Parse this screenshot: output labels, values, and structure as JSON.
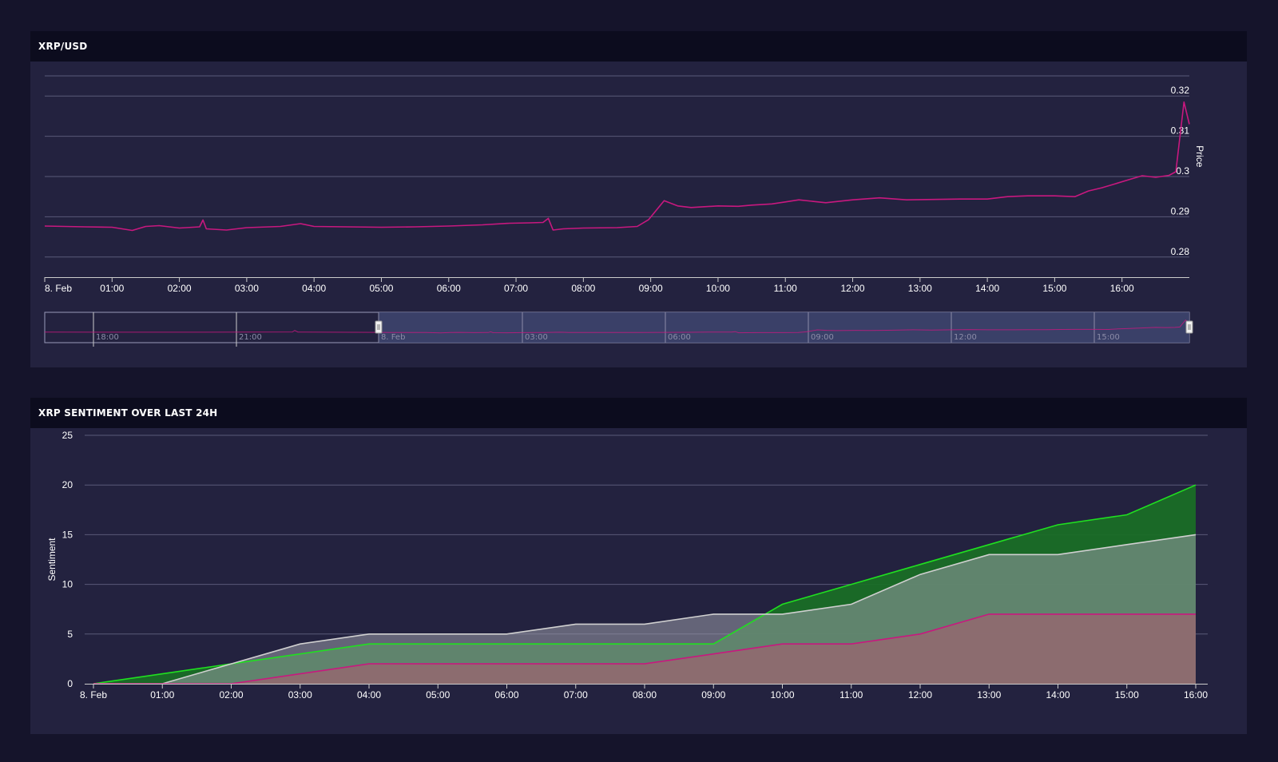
{
  "price_panel": {
    "title": "XRP/USD"
  },
  "sentiment_panel": {
    "title": "XRP SENTIMENT OVER LAST 24H"
  },
  "colors": {
    "page_bg": "#15142b",
    "panel_bg": "#23223f",
    "header_bg": "#0c0c1e",
    "price_line": "#c8187f",
    "positive": "#20e020",
    "neutral": "#d0d0d0",
    "negative": "#c8187f",
    "navigator_selection": "#3e4570"
  },
  "chart_data": [
    {
      "type": "line",
      "title": "XRP/USD",
      "ylabel": "Price",
      "y_axis_side": "right",
      "ylim": [
        0.275,
        0.325
      ],
      "yticks": [
        "0.28",
        "0.29",
        "0.3",
        "0.31",
        "0.32"
      ],
      "xlabels": [
        "8. Feb",
        "01:00",
        "02:00",
        "03:00",
        "04:00",
        "05:00",
        "06:00",
        "07:00",
        "08:00",
        "09:00",
        "10:00",
        "11:00",
        "12:00",
        "13:00",
        "14:00",
        "15:00",
        "16:00"
      ],
      "xlim_hours": [
        0,
        17
      ],
      "grid": true,
      "series": [
        {
          "x": [
            0,
            0.3,
            0.6,
            1.0,
            1.3,
            1.5,
            1.7,
            2.0,
            2.3,
            2.35,
            2.4,
            2.7,
            3.0,
            3.5,
            3.8,
            4.0,
            4.5,
            5.0,
            5.5,
            6.0,
            6.5,
            6.9,
            7.2,
            7.4,
            7.48,
            7.55,
            7.7,
            8.0,
            8.5,
            8.8,
            8.97,
            9.2,
            9.4,
            9.6,
            10.0,
            10.3,
            10.5,
            10.8,
            11.0,
            11.2,
            11.6,
            12.0,
            12.4,
            12.8,
            13.2,
            13.6,
            14.0,
            14.3,
            14.6,
            15.0,
            15.3,
            15.5,
            15.7,
            15.9,
            16.1,
            16.3,
            16.5,
            16.7,
            16.8,
            16.85,
            16.92,
            17.0
          ],
          "y": [
            0.2877,
            0.2876,
            0.2875,
            0.2874,
            0.2866,
            0.2876,
            0.2878,
            0.2872,
            0.2875,
            0.2892,
            0.287,
            0.2867,
            0.2873,
            0.2876,
            0.2883,
            0.2876,
            0.2875,
            0.2874,
            0.2875,
            0.2877,
            0.288,
            0.2884,
            0.2885,
            0.2886,
            0.2896,
            0.2867,
            0.287,
            0.2872,
            0.2873,
            0.2876,
            0.2893,
            0.294,
            0.2927,
            0.2923,
            0.2927,
            0.2926,
            0.2929,
            0.2932,
            0.2937,
            0.2942,
            0.2935,
            0.2942,
            0.2947,
            0.2942,
            0.2943,
            0.2944,
            0.2944,
            0.295,
            0.2952,
            0.2952,
            0.295,
            0.2964,
            0.2972,
            0.2982,
            0.2992,
            0.3002,
            0.2998,
            0.3003,
            0.3012,
            0.3085,
            0.3185,
            0.313
          ]
        }
      ],
      "navigator": {
        "labels": [
          "18:00",
          "21:00",
          "8. Feb",
          "03:00",
          "06:00",
          "09:00",
          "12:00",
          "15:00"
        ]
      }
    },
    {
      "type": "area",
      "title": "XRP SENTIMENT OVER LAST 24H",
      "ylabel": "Sentiment",
      "ylim": [
        0,
        25
      ],
      "yticks": [
        "0",
        "5",
        "10",
        "15",
        "20",
        "25"
      ],
      "categories": [
        "8. Feb",
        "01:00",
        "02:00",
        "03:00",
        "04:00",
        "05:00",
        "06:00",
        "07:00",
        "08:00",
        "09:00",
        "10:00",
        "11:00",
        "12:00",
        "13:00",
        "14:00",
        "15:00",
        "16:00"
      ],
      "grid": true,
      "series": [
        {
          "values": [
            0,
            1,
            2,
            3,
            4,
            4,
            4,
            4,
            4,
            4,
            8,
            10,
            12,
            14,
            16,
            17,
            20
          ],
          "color": "#20e020"
        },
        {
          "values": [
            0,
            0,
            2,
            4,
            5,
            5,
            5,
            6,
            6,
            7,
            7,
            8,
            11,
            13,
            13,
            14,
            15
          ],
          "color": "#d0d0d0"
        },
        {
          "values": [
            0,
            0,
            0,
            1,
            2,
            2,
            2,
            2,
            2,
            3,
            4,
            4,
            5,
            7,
            7,
            7,
            7
          ],
          "color": "#c8187f"
        }
      ]
    }
  ]
}
